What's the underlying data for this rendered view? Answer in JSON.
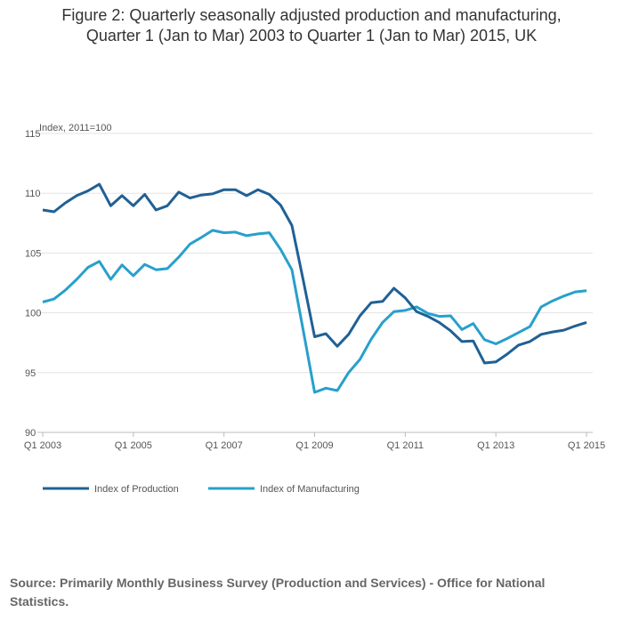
{
  "title_line1": "Figure 2: Quarterly seasonally adjusted production and manufacturing,",
  "title_line2": "Quarter 1 (Jan to Mar) 2003 to Quarter 1 (Jan to Mar) 2015, UK",
  "source": "Source: Primarily Monthly Business Survey (Production and Services) - Office for National Statistics.",
  "chart_data": {
    "type": "line",
    "ylabel": "Index, 2011=100",
    "ylim": [
      90,
      115
    ],
    "yticks": [
      90,
      95,
      100,
      105,
      110,
      115
    ],
    "x_start": "Q1 2003",
    "x_end": "Q1 2015",
    "xtick_labels": [
      "Q1 2003",
      "Q1 2005",
      "Q1 2007",
      "Q1 2009",
      "Q1 2011",
      "Q1 2013",
      "Q1 2015"
    ],
    "xtick_indices": [
      0,
      8,
      16,
      24,
      32,
      40,
      48
    ],
    "grid": true,
    "legend_position": "bottom-left",
    "series": [
      {
        "name": "Index of Production",
        "color": "#206095",
        "values": [
          108.6,
          108.45,
          109.2,
          109.8,
          110.2,
          110.75,
          108.95,
          109.8,
          108.95,
          109.9,
          108.6,
          108.95,
          110.1,
          109.6,
          109.85,
          109.95,
          110.3,
          110.3,
          109.8,
          110.3,
          109.9,
          109.0,
          107.3,
          102.7,
          98.0,
          98.25,
          97.2,
          98.2,
          99.75,
          100.85,
          100.95,
          102.05,
          101.25,
          100.1,
          99.7,
          99.2,
          98.5,
          97.6,
          97.65,
          95.8,
          95.9,
          96.55,
          97.3,
          97.6,
          98.2,
          98.4,
          98.55,
          98.9,
          99.2
        ]
      },
      {
        "name": "Index of Manufacturing",
        "color": "#27a0cc",
        "values": [
          100.9,
          101.15,
          101.9,
          102.8,
          103.8,
          104.3,
          102.8,
          104.0,
          103.1,
          104.05,
          103.6,
          103.7,
          104.65,
          105.75,
          106.3,
          106.9,
          106.7,
          106.75,
          106.45,
          106.6,
          106.7,
          105.3,
          103.6,
          98.5,
          93.35,
          93.7,
          93.5,
          95.0,
          96.1,
          97.8,
          99.2,
          100.1,
          100.2,
          100.5,
          99.95,
          99.7,
          99.75,
          98.6,
          99.1,
          97.75,
          97.4,
          97.85,
          98.35,
          98.85,
          100.5,
          101.0,
          101.4,
          101.75,
          101.85
        ]
      }
    ]
  }
}
